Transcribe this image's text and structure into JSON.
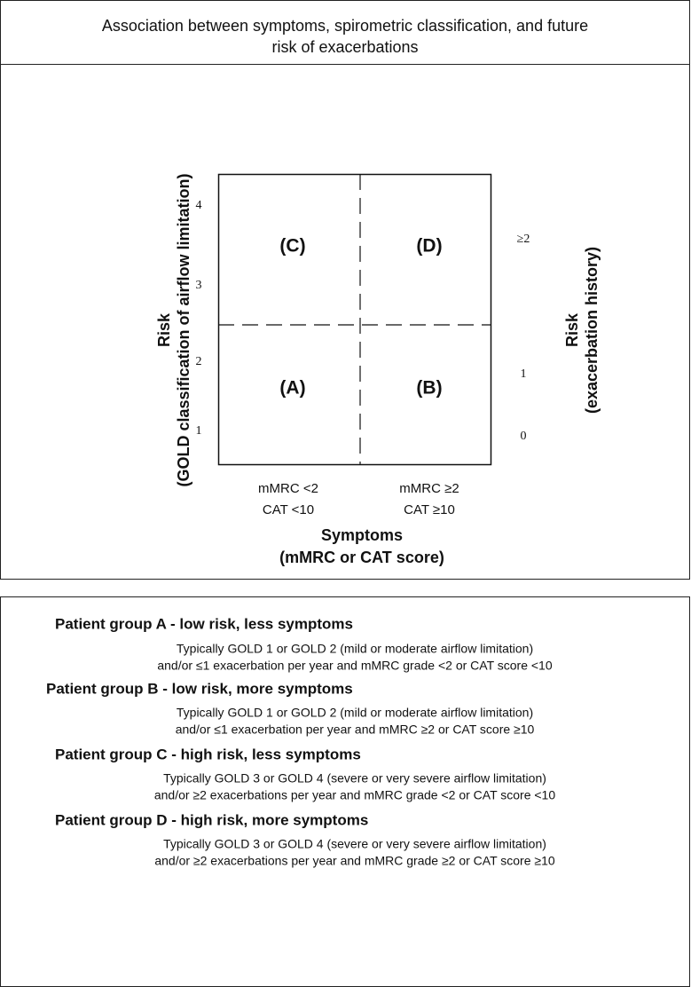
{
  "title": [
    "Association between symptoms,  spirometric classification, and future",
    "risk of exacerbations"
  ],
  "diagram": {
    "quadrants": [
      "(C)",
      "(D)",
      "(A)",
      "(B)"
    ],
    "left_axis": {
      "label": [
        "Risk",
        "(GOLD classification of airflow limitation)"
      ],
      "ticks": [
        "4",
        "3",
        "2",
        "1"
      ]
    },
    "right_axis": {
      "label": [
        "Risk",
        "(exacerbation history)"
      ],
      "ticks": [
        "≥2",
        "1",
        "0"
      ]
    },
    "x_categories": [
      [
        "mMRC <2",
        "CAT <10"
      ],
      [
        "mMRC ≥2",
        "CAT ≥10"
      ]
    ],
    "x_axis_label": [
      "Symptoms",
      "(mMRC or CAT score)"
    ]
  },
  "groups": [
    {
      "heading": "Patient group A - low risk, less symptoms",
      "lines": [
        "Typically GOLD 1 or GOLD 2 (mild or moderate airflow limitation)",
        "and/or ≤1 exacerbation per year and mMRC grade <2 or CAT score <10"
      ]
    },
    {
      "heading": "Patient group B - low risk, more symptoms",
      "lines": [
        "Typically GOLD 1 or GOLD 2 (mild or moderate airflow limitation)",
        "and/or ≤1 exacerbation per year and mMRC ≥2 or CAT score ≥10"
      ]
    },
    {
      "heading": "Patient group C - high risk, less symptoms",
      "lines": [
        "Typically GOLD 3 or GOLD 4 (severe or very severe airflow limitation)",
        "and/or ≥2 exacerbations per year and mMRC grade <2 or CAT score <10"
      ]
    },
    {
      "heading": "Patient group D - high risk, more symptoms",
      "lines": [
        "Typically GOLD 3 or GOLD 4 (severe or very severe airflow limitation)",
        "and/or ≥2 exacerbations per year and mMRC grade ≥2 or CAT score ≥10"
      ]
    }
  ]
}
